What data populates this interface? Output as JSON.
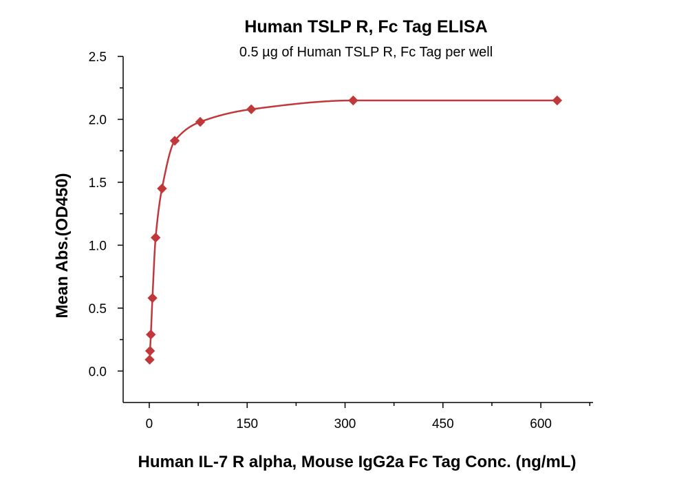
{
  "chart_data": {
    "type": "scatter",
    "title": "Human TSLP R, Fc Tag ELISA",
    "subtitle": "0.5 µg of Human TSLP R, Fc Tag per well",
    "xlabel": "Human IL-7 R alpha, Mouse IgG2a Fc Tag Conc. (ng/mL)",
    "ylabel": "Mean Abs.(OD450)",
    "xlim": [
      -40,
      680
    ],
    "ylim": [
      -0.25,
      2.5
    ],
    "x_ticks": [
      0,
      150,
      300,
      450,
      600
    ],
    "x_tick_labels": [
      "0",
      "150",
      "300",
      "450",
      "600"
    ],
    "y_ticks": [
      0.0,
      0.5,
      1.0,
      1.5,
      2.0,
      2.5
    ],
    "y_tick_labels": [
      "0.0",
      "0.5",
      "1.0",
      "1.5",
      "2.0",
      "2.5"
    ],
    "grid": false,
    "color": "#c0383a",
    "marker": "diamond",
    "series": [
      {
        "x": [
          0.61,
          1.22,
          2.44,
          4.88,
          9.77,
          19.5,
          39.1,
          78.1,
          156.3,
          312.5,
          625
        ],
        "y": [
          0.09,
          0.16,
          0.29,
          0.58,
          1.06,
          1.45,
          1.83,
          1.98,
          2.08,
          2.15,
          2.15
        ],
        "fit": "curve"
      }
    ]
  }
}
